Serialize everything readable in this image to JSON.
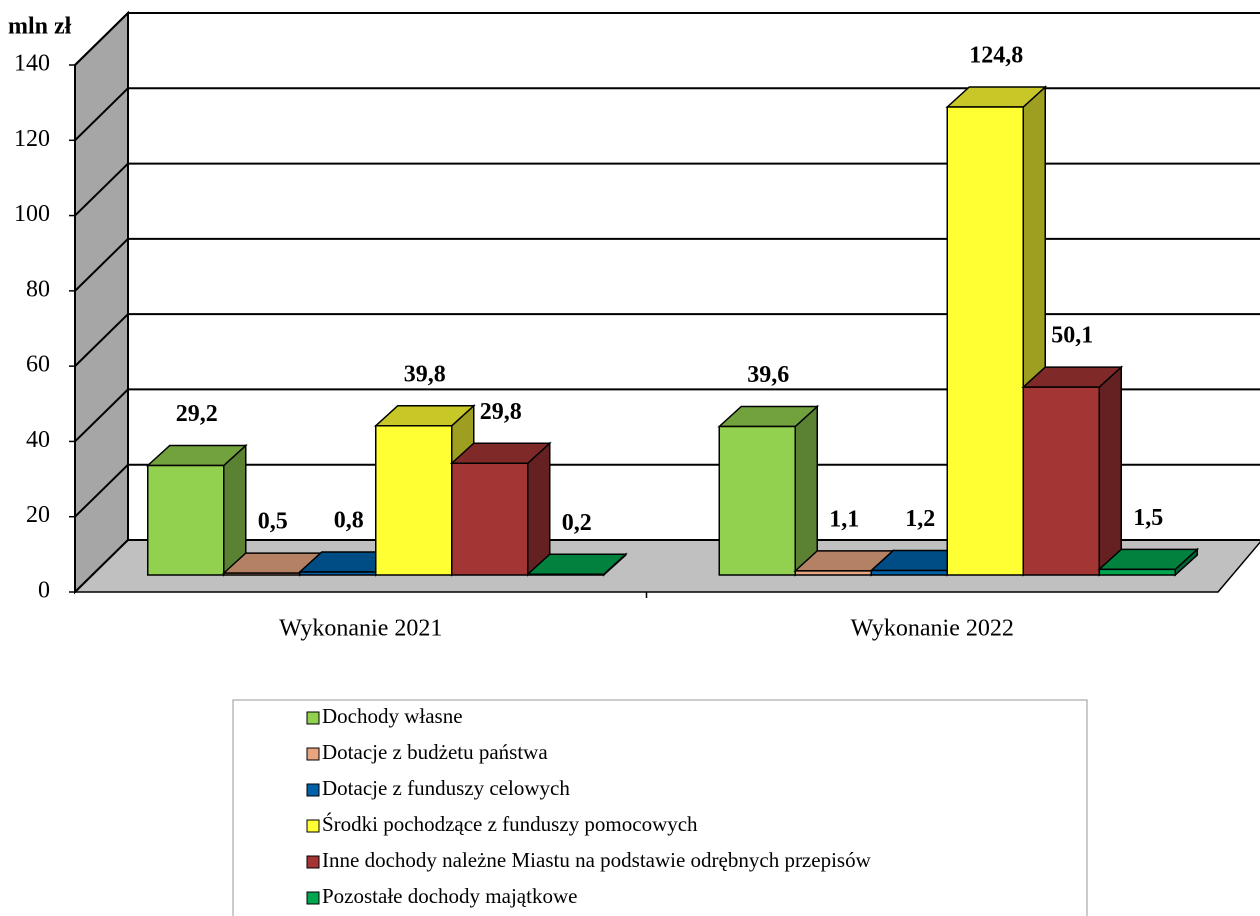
{
  "chart_data": {
    "type": "bar3d",
    "y_label": "mln zł",
    "categories": [
      "Wykonanie 2021",
      "Wykonanie 2022"
    ],
    "series": [
      {
        "name": "Dochody własne",
        "color": "#92d050",
        "values": [
          29.2,
          39.6
        ],
        "value_labels": [
          "29,2",
          "39,6"
        ]
      },
      {
        "name": "Dotacje z budżetu państwa",
        "color": "#e8a582",
        "values": [
          0.5,
          1.1
        ],
        "value_labels": [
          "0,5",
          "1,1"
        ]
      },
      {
        "name": "Dotacje z funduszy celowych",
        "color": "#0061aa",
        "values": [
          0.8,
          1.2
        ],
        "value_labels": [
          "0,8",
          "1,2"
        ]
      },
      {
        "name": "Środki pochodzące z funduszy pomocowych",
        "color": "#ffff33",
        "values": [
          39.8,
          124.8
        ],
        "value_labels": [
          "39,8",
          "124,8"
        ]
      },
      {
        "name": "Inne dochody należne Miastu na podstawie odrębnych przepisów",
        "color": "#a33535",
        "values": [
          29.8,
          50.1
        ],
        "value_labels": [
          "29,8",
          "50,1"
        ]
      },
      {
        "name": "Pozostałe dochody majątkowe",
        "color": "#00a550",
        "values": [
          0.2,
          1.5
        ],
        "value_labels": [
          "0,2",
          "1,5"
        ]
      }
    ],
    "ylim": [
      0,
      140
    ],
    "yticks": [
      0,
      20,
      40,
      60,
      80,
      100,
      120,
      140
    ],
    "grid": true
  }
}
